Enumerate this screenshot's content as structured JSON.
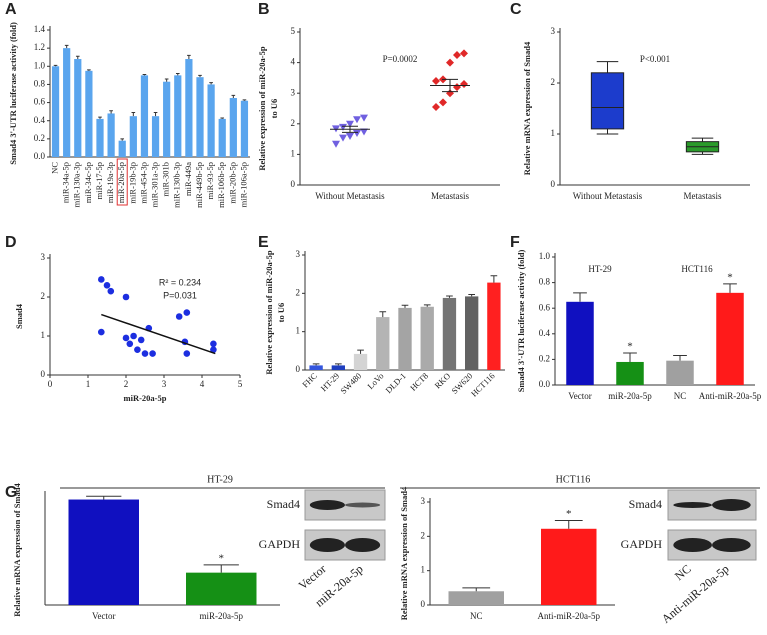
{
  "panel_labels": [
    "A",
    "B",
    "C",
    "D",
    "E",
    "F",
    "G"
  ],
  "chart_data": [
    {
      "type": "bar",
      "ylabel": "Smad4 3'-UTR luciferase activity (fold)",
      "categories": [
        "NC",
        "miR-34a-5p",
        "miR-130a-3p",
        "miR-34c-5p",
        "miR-17-5p",
        "miR-19a-3p",
        "miR-20a-5p",
        "miR-19b-3p",
        "miR-454-3p",
        "miR-301a-3p",
        "miR-301b",
        "miR-130b-3p",
        "miR-449a",
        "miR-449b-5p",
        "miR-93-5p",
        "miR-106b-5p",
        "miR-20b-5p",
        "miR-106a-5p"
      ],
      "values": [
        1.0,
        1.2,
        1.08,
        0.95,
        0.42,
        0.48,
        0.18,
        0.45,
        0.9,
        0.45,
        0.83,
        0.9,
        1.08,
        0.88,
        0.8,
        0.42,
        0.65,
        0.62
      ],
      "errors": [
        0.01,
        0.03,
        0.03,
        0.01,
        0.02,
        0.03,
        0.02,
        0.04,
        0.01,
        0.04,
        0.03,
        0.02,
        0.04,
        0.02,
        0.02,
        0.01,
        0.03,
        0.01
      ],
      "color": "#5aa5ee",
      "highlight": "miR-20a-5p",
      "ylim": [
        0,
        1.4
      ],
      "yticks": [
        {
          "value": 0,
          "label": "0.0"
        },
        0.2,
        0.4,
        0.6,
        0.8,
        {
          "value": 1,
          "label": "1.0"
        },
        1.2,
        1.4
      ]
    },
    {
      "type": "dotplot",
      "ylabel": [
        "Relative expression of miR-20a-5p",
        "to U6"
      ],
      "annotations": [
        "P=0.0002"
      ],
      "categories": [
        "Without Metastasis",
        "Metastasis"
      ],
      "points": [
        [
          1.35,
          1.55,
          1.6,
          1.7,
          1.75,
          1.85,
          1.9,
          2.0,
          2.15,
          2.2
        ],
        [
          2.55,
          2.7,
          3.0,
          3.2,
          3.3,
          3.4,
          3.45,
          4.0,
          4.25,
          4.3
        ]
      ],
      "means": [
        1.82,
        3.25
      ],
      "sems": [
        0.1,
        0.2
      ],
      "colors": [
        "#7060e0",
        "#e02828"
      ],
      "markers": [
        "triangle-down",
        "diamond"
      ],
      "ylim": [
        0,
        5
      ],
      "yticks": [
        0,
        1,
        2,
        3,
        4,
        5
      ]
    },
    {
      "type": "box",
      "ylabel": "Relative mRNA expression of Smad4",
      "annotations": [
        "P<0.001"
      ],
      "categories": [
        "Without Metastasis",
        "Metastasis"
      ],
      "stats": [
        {
          "min": 1.0,
          "q1": 1.1,
          "median": 1.52,
          "q3": 2.2,
          "max": 2.42
        },
        {
          "min": 0.6,
          "q1": 0.65,
          "median": 0.75,
          "q3": 0.85,
          "max": 0.92
        }
      ],
      "colors": [
        "#1c3ccc",
        "#2a9a2a"
      ],
      "ylim": [
        0,
        3
      ],
      "yticks": [
        0,
        1,
        2,
        3
      ]
    },
    {
      "type": "scatter",
      "ylabel": "Smad4",
      "xlabel": "miR-20a-5p",
      "annotations": [
        "R² = 0.234",
        "P=0.031"
      ],
      "x": [
        1.35,
        1.5,
        1.6,
        2.0,
        1.35,
        2.0,
        2.1,
        2.2,
        2.3,
        2.4,
        2.5,
        2.6,
        2.7,
        3.4,
        3.6,
        3.55,
        3.6,
        4.3,
        4.3
      ],
      "values": [
        2.45,
        2.3,
        2.15,
        2.0,
        1.1,
        0.95,
        0.8,
        1.0,
        0.65,
        0.9,
        0.55,
        1.2,
        0.55,
        1.5,
        1.6,
        0.85,
        0.55,
        0.8,
        0.65
      ],
      "fit": {
        "x": [
          1.35,
          4.35
        ],
        "y": [
          1.55,
          0.55
        ]
      },
      "color": "#1c2ee0",
      "xlim": [
        0,
        5
      ],
      "xticks": [
        0,
        1,
        2,
        3,
        4,
        5
      ],
      "ylim": [
        0,
        3
      ],
      "yticks": [
        0,
        1,
        2,
        3
      ]
    },
    {
      "type": "bar",
      "ylabel": [
        "Relative  expression of miR-20a-5p",
        "to U6"
      ],
      "categories": [
        "FHC",
        "HT-29",
        "SW480",
        "LoVo",
        "DLD-1",
        "HCT8",
        "RKO",
        "SW620",
        "HCT116"
      ],
      "values": [
        0.12,
        0.12,
        0.42,
        1.38,
        1.62,
        1.65,
        1.88,
        1.92,
        2.28
      ],
      "errors": [
        0.04,
        0.04,
        0.1,
        0.14,
        0.07,
        0.05,
        0.05,
        0.05,
        0.18
      ],
      "colors": [
        "#3355dd",
        "#1f3fbf",
        "#d4d4d4",
        "#b4b4b4",
        "#a4a4a4",
        "#aaaaaa",
        "#747474",
        "#626262",
        "#ff2020"
      ],
      "ylim": [
        0,
        3
      ],
      "yticks": [
        0,
        1,
        2,
        3
      ]
    },
    {
      "type": "bar",
      "ylabel": "Smad4 3'-UTR luciferase activity (fold)",
      "annotations": [
        "HT-29",
        "HCT116"
      ],
      "categories": [
        "Vector",
        "miR-20a-5p",
        "NC",
        "Anti-miR-20a-5p"
      ],
      "values": [
        0.65,
        0.18,
        0.19,
        0.72
      ],
      "errors": [
        0.07,
        0.07,
        0.04,
        0.07
      ],
      "significance": [
        null,
        "*",
        null,
        "*"
      ],
      "colors": [
        "#1010c0",
        "#159015",
        "#a0a0a0",
        "#ff1a1a"
      ],
      "ylim": [
        0,
        1
      ],
      "yticks": [
        {
          "value": 0,
          "label": "0.0"
        },
        0.2,
        0.4,
        0.6,
        0.8,
        {
          "value": 1,
          "label": "1.0"
        }
      ]
    },
    {
      "type": "bar",
      "title": "HT-29",
      "ylabel": "Relative mRNA expression of Smad4",
      "categories": [
        "Vector",
        "miR-20a-5p"
      ],
      "values": [
        1.63,
        0.5
      ],
      "errors": [
        0.05,
        0.12
      ],
      "significance": [
        null,
        "*"
      ],
      "colors": [
        "#1010c0",
        "#159015"
      ],
      "ylim": [
        0,
        1.7
      ]
    },
    {
      "type": "bar",
      "title": "HCT116",
      "ylabel": "Relative mRNA expression of Smad4",
      "categories": [
        "NC",
        "Anti-miR-20a-5p"
      ],
      "values": [
        0.4,
        2.22
      ],
      "errors": [
        0.1,
        0.24
      ],
      "significance": [
        null,
        "*"
      ],
      "colors": [
        "#a0a0a0",
        "#ff1a1a"
      ],
      "ylim": [
        0,
        3
      ],
      "yticks": [
        0,
        1,
        2,
        3
      ]
    }
  ],
  "blots": [
    {
      "rows": [
        "Smad4",
        "GAPDH"
      ],
      "lanes": [
        "Vector",
        "miR-20a-5p"
      ]
    },
    {
      "rows": [
        "Smad4",
        "GAPDH"
      ],
      "lanes": [
        "NC",
        "Anti-miR-20a-5p"
      ]
    }
  ]
}
